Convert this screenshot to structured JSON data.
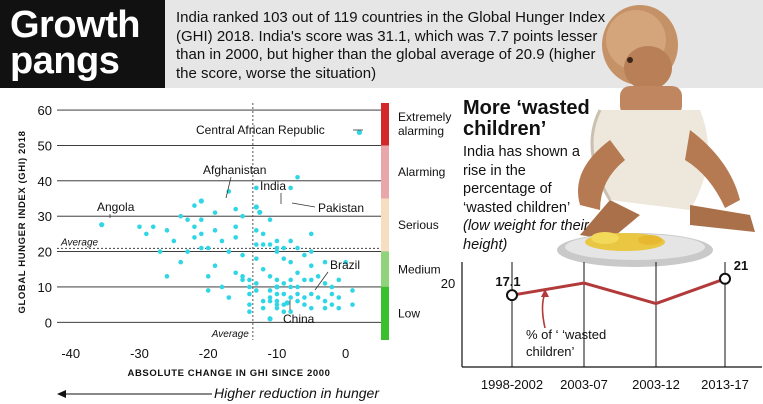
{
  "header": {
    "title_line1": "Growth",
    "title_line2": "pangs",
    "intro": "India ranked 103 out of 119 countries in the Global Hunger Index (GHI) 2018. India's score was 31.1, which was 7.7 points lesser than in 2000, but higher than the global average of 20.9 (higher the score, worse the situation)"
  },
  "colors": {
    "point": "#2fd6e6",
    "extremely_alarming": "#d42727",
    "alarming": "#e9a6ab",
    "serious": "#f6dfc0",
    "medium": "#8fd47a",
    "low": "#3bbf2e",
    "wasted_line": "#b23a3a"
  },
  "chart_data": [
    {
      "type": "scatter",
      "title": "",
      "xlabel": "ABSOLUTE CHANGE IN GHI SINCE 2000",
      "ylabel": "GLOBAL HUNGER INDEX (GHI) 2018",
      "xlim": [
        -42,
        5
      ],
      "ylim": [
        -5,
        62
      ],
      "xticks": [
        -40,
        -30,
        -20,
        -10,
        0
      ],
      "yticks": [
        0,
        10,
        20,
        30,
        40,
        50,
        60
      ],
      "severity_bands": [
        {
          "label": "Extremely alarming",
          "range": [
            50,
            62
          ],
          "color": "#d42727"
        },
        {
          "label": "Alarming",
          "range": [
            35,
            50
          ],
          "color": "#e9a6ab"
        },
        {
          "label": "Serious",
          "range": [
            20,
            35
          ],
          "color": "#f6dfc0"
        },
        {
          "label": "Medium",
          "range": [
            10,
            20
          ],
          "color": "#8fd47a"
        },
        {
          "label": "Low",
          "range": [
            -5,
            10
          ],
          "color": "#3bbf2e"
        }
      ],
      "reference_lines": {
        "average_y": 20.9,
        "average_y_label": "Average",
        "average_x": -13.5,
        "average_x_label": "Average"
      },
      "x_arrow_label": "Higher reduction in hunger",
      "labeled_points": [
        {
          "name": "Central African Republic",
          "x": 2,
          "y": 53.7
        },
        {
          "name": "Afghanistan",
          "x": -21,
          "y": 34.3
        },
        {
          "name": "India",
          "x": -12.5,
          "y": 31.1
        },
        {
          "name": "Pakistan",
          "x": -13,
          "y": 32.6
        },
        {
          "name": "Angola",
          "x": -35.5,
          "y": 27.6
        },
        {
          "name": "Brazil",
          "x": -8.5,
          "y": 5.5
        },
        {
          "name": "China",
          "x": -11,
          "y": 1
        },
        {
          "name": "",
          "x": -10,
          "y": 10
        }
      ],
      "points": [
        [
          -30,
          27
        ],
        [
          -28,
          27
        ],
        [
          -26,
          26
        ],
        [
          -26,
          13
        ],
        [
          -25,
          23
        ],
        [
          -24,
          30
        ],
        [
          -23,
          20
        ],
        [
          -23,
          29
        ],
        [
          -22,
          27
        ],
        [
          -22,
          33
        ],
        [
          -22,
          24
        ],
        [
          -21,
          29
        ],
        [
          -21,
          25
        ],
        [
          -21,
          21
        ],
        [
          -20,
          21
        ],
        [
          -20,
          9
        ],
        [
          -19,
          26
        ],
        [
          -19,
          31
        ],
        [
          -19,
          16
        ],
        [
          -18,
          23
        ],
        [
          -18,
          10
        ],
        [
          -17,
          37
        ],
        [
          -17,
          20
        ],
        [
          -17,
          7
        ],
        [
          -16,
          32
        ],
        [
          -16,
          27
        ],
        [
          -16,
          24
        ],
        [
          -16,
          14
        ],
        [
          -15,
          19
        ],
        [
          -15,
          12
        ],
        [
          -15,
          30
        ],
        [
          -15,
          13
        ],
        [
          -14,
          10
        ],
        [
          -14,
          12
        ],
        [
          -14,
          8
        ],
        [
          -14,
          5
        ],
        [
          -14,
          3
        ],
        [
          -13,
          38
        ],
        [
          -13,
          18
        ],
        [
          -13,
          26
        ],
        [
          -13,
          22
        ],
        [
          -13,
          11
        ],
        [
          -13,
          9
        ],
        [
          -12,
          25
        ],
        [
          -12,
          22
        ],
        [
          -12,
          15
        ],
        [
          -12,
          6
        ],
        [
          -12,
          4
        ],
        [
          -11,
          29
        ],
        [
          -11,
          22
        ],
        [
          -11,
          13
        ],
        [
          -11,
          9
        ],
        [
          -11,
          7
        ],
        [
          -11,
          6
        ],
        [
          -10,
          23
        ],
        [
          -10,
          21
        ],
        [
          -10,
          20
        ],
        [
          -10,
          12
        ],
        [
          -10,
          8
        ],
        [
          -10,
          6
        ],
        [
          -10,
          5
        ],
        [
          -10,
          4
        ],
        [
          -9,
          21
        ],
        [
          -9,
          18
        ],
        [
          -9,
          11
        ],
        [
          -9,
          8
        ],
        [
          -9,
          5
        ],
        [
          -9,
          3
        ],
        [
          -8,
          38
        ],
        [
          -8,
          23
        ],
        [
          -8,
          17
        ],
        [
          -8,
          12
        ],
        [
          -8,
          10
        ],
        [
          -8,
          7
        ],
        [
          -8,
          3
        ],
        [
          -7,
          41
        ],
        [
          -7,
          21
        ],
        [
          -7,
          14
        ],
        [
          -7,
          10
        ],
        [
          -7,
          8
        ],
        [
          -7,
          6
        ],
        [
          -6,
          19
        ],
        [
          -6,
          12
        ],
        [
          -6,
          7
        ],
        [
          -6,
          5
        ],
        [
          -5,
          25
        ],
        [
          -5,
          20
        ],
        [
          -5,
          16
        ],
        [
          -5,
          12
        ],
        [
          -5,
          8
        ],
        [
          -5,
          4
        ],
        [
          -4,
          13
        ],
        [
          -4,
          7
        ],
        [
          -3,
          17
        ],
        [
          -3,
          11
        ],
        [
          -3,
          6
        ],
        [
          -3,
          4
        ],
        [
          -2,
          10
        ],
        [
          -2,
          8
        ],
        [
          -2,
          5
        ],
        [
          -1,
          12
        ],
        [
          -1,
          7
        ],
        [
          -1,
          4
        ],
        [
          0,
          17
        ],
        [
          1,
          9
        ],
        [
          1,
          5
        ],
        [
          -27,
          20
        ],
        [
          -29,
          25
        ],
        [
          -24,
          17
        ],
        [
          -20,
          13
        ]
      ]
    },
    {
      "type": "line",
      "title": "More ‘wasted children’",
      "description_plain": "India has shown a rise in the percentage of ‘wasted children’",
      "description_italic": "(low weight for their height)",
      "categories": [
        "1998-2002",
        "2003-07",
        "2003-12",
        "2013-17"
      ],
      "series": [
        {
          "name": "% of ‘wasted children’",
          "values": [
            17.1,
            20,
            15.1,
            21
          ]
        }
      ],
      "ylim": [
        0,
        25
      ],
      "yticks": [
        20
      ],
      "value_labels": [
        "17.1",
        "",
        "",
        "21"
      ]
    }
  ]
}
